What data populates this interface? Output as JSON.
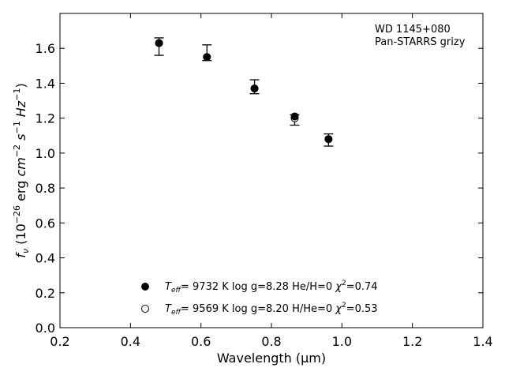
{
  "chart_data": {
    "type": "scatter",
    "xlim": [
      0.2,
      1.4
    ],
    "ylim": [
      0.0,
      1.8
    ],
    "x_ticks": [
      "0.2",
      "0.4",
      "0.6",
      "0.8",
      "1.0",
      "1.2",
      "1.4"
    ],
    "y_ticks": [
      "0.0",
      "0.2",
      "0.4",
      "0.6",
      "0.8",
      "1.0",
      "1.2",
      "1.4",
      "1.6"
    ],
    "xlabel": "Wavelength (μm)",
    "ylabel": {
      "symbol": "f",
      "symbol_sub": "ν",
      "unit_pre": " (10",
      "unit_exp1": "−26",
      "unit_mid": " erg ",
      "cm": "cm",
      "exp2": "−2",
      "s": "s",
      "exp3": "−1",
      "hz": "Hz",
      "exp4": "−1",
      "close": ")"
    },
    "annotation": [
      "WD 1145+080",
      "Pan-STARRS grizy"
    ],
    "grid": false,
    "legend_position": "bottom-center",
    "observed": {
      "x": [
        0.481,
        0.617,
        0.752,
        0.866,
        0.962
      ],
      "y": [
        1.64,
        1.55,
        1.38,
        1.19,
        1.08
      ],
      "yerr_low": [
        0.08,
        0.02,
        0.04,
        0.03,
        0.04
      ],
      "yerr_high": [
        0.02,
        0.07,
        0.04,
        0.03,
        0.03
      ]
    },
    "series": [
      {
        "marker": "filled",
        "x": [
          0.481,
          0.617,
          0.752,
          0.866,
          0.962
        ],
        "y": [
          1.63,
          1.55,
          1.37,
          1.21,
          1.08
        ],
        "legend": {
          "teff": "T",
          "teff_sub": "eff",
          "teff_val": "=  9732 K  log g=8.28  He/H=0  ",
          "chi": "χ",
          "chi_exp": "2",
          "chi_val": "=0.74"
        }
      },
      {
        "marker": "open",
        "x": [
          0.481,
          0.617,
          0.752,
          0.866,
          0.962
        ],
        "y": [
          1.63,
          1.55,
          1.37,
          1.2,
          1.08
        ],
        "legend": {
          "teff": "T",
          "teff_sub": "eff",
          "teff_val": "=  9569 K  log g=8.20  H/He=0  ",
          "chi": "χ",
          "chi_exp": "2",
          "chi_val": "=0.53"
        }
      }
    ]
  }
}
